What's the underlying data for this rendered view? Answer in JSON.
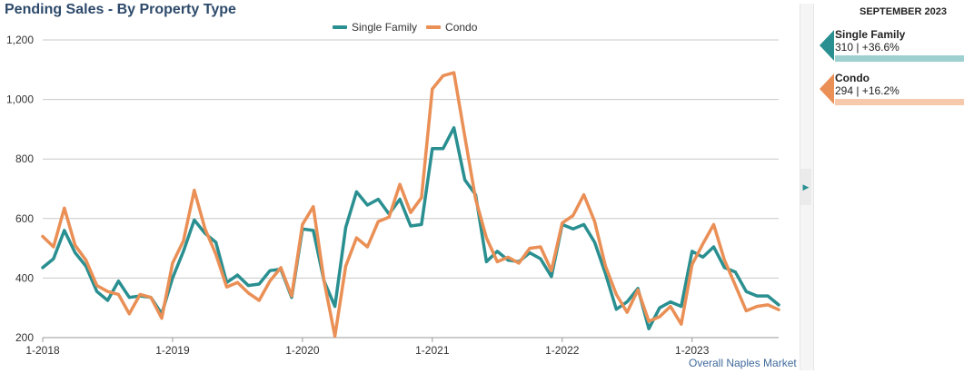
{
  "header": {
    "title": "Pending Sales - By Property Type"
  },
  "legend": {
    "items": [
      {
        "label": "Single Family",
        "color": "#2a8f90"
      },
      {
        "label": "Condo",
        "color": "#ea8f55"
      }
    ]
  },
  "footer": {
    "link_label": "Overall Naples Market"
  },
  "side_panel": {
    "header": "SEPTEMBER 2023",
    "cards": [
      {
        "name": "Single Family",
        "stat": "310 | +36.6%",
        "color": "#2a8f90",
        "bar_color": "#9dd0cf"
      },
      {
        "name": "Condo",
        "stat": "294 | +16.2%",
        "color": "#ea8f55",
        "bar_color": "#f6c9ad"
      }
    ]
  },
  "chart_data": {
    "type": "line",
    "title": "Pending Sales - By Property Type",
    "xlabel": "",
    "ylabel": "",
    "ylim": [
      200,
      1200
    ],
    "yticks": [
      "200",
      "400",
      "600",
      "800",
      "1,000",
      "1,200"
    ],
    "xticks": [
      "1-2018",
      "1-2019",
      "1-2020",
      "1-2021",
      "1-2022",
      "1-2023"
    ],
    "x_start": "2018-01",
    "x_end": "2023-09",
    "grid": true,
    "legend_position": "top",
    "series": [
      {
        "name": "Single Family",
        "color": "#2a8f90",
        "values": [
          435,
          465,
          560,
          485,
          440,
          355,
          325,
          390,
          335,
          340,
          335,
          280,
          400,
          490,
          595,
          550,
          520,
          385,
          410,
          375,
          380,
          425,
          430,
          335,
          565,
          560,
          390,
          305,
          570,
          690,
          645,
          665,
          615,
          665,
          575,
          580,
          835,
          835,
          905,
          730,
          680,
          455,
          490,
          460,
          455,
          485,
          465,
          405,
          580,
          565,
          580,
          520,
          415,
          295,
          320,
          365,
          230,
          300,
          320,
          305,
          490,
          470,
          505,
          435,
          420,
          355,
          340,
          340,
          310
        ]
      },
      {
        "name": "Condo",
        "color": "#ea8f55",
        "values": [
          540,
          505,
          635,
          510,
          460,
          375,
          355,
          345,
          280,
          345,
          335,
          265,
          450,
          525,
          695,
          565,
          480,
          370,
          385,
          350,
          325,
          390,
          435,
          340,
          580,
          640,
          390,
          205,
          440,
          535,
          505,
          590,
          605,
          715,
          620,
          670,
          1035,
          1080,
          1090,
          875,
          665,
          535,
          455,
          470,
          450,
          500,
          505,
          425,
          585,
          610,
          680,
          590,
          440,
          345,
          285,
          360,
          255,
          270,
          305,
          245,
          445,
          515,
          580,
          460,
          375,
          290,
          305,
          310,
          294
        ]
      }
    ]
  }
}
